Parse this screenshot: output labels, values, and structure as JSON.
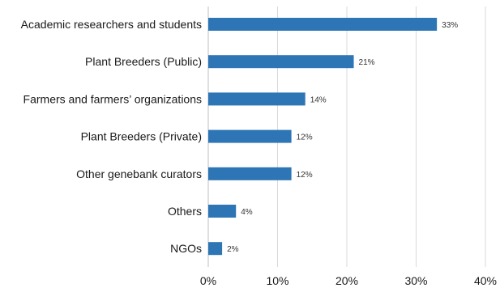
{
  "chart_data": {
    "type": "bar",
    "orientation": "horizontal",
    "categories": [
      "Academic researchers and students",
      "Plant Breeders (Public)",
      "Farmers and farmers’ organizations",
      "Plant Breeders (Private)",
      "Other genebank curators",
      "Others",
      "NGOs"
    ],
    "values": [
      33,
      21,
      14,
      12,
      12,
      4,
      2
    ],
    "data_labels": [
      "33%",
      "21%",
      "14%",
      "12%",
      "12%",
      "4%",
      "2%"
    ],
    "x_ticks": [
      "0%",
      "10%",
      "20%",
      "30%",
      "40%"
    ],
    "xlim": [
      0,
      40
    ],
    "grid": true,
    "bar_color": "#2e75b6",
    "title": "",
    "xlabel": "",
    "ylabel": ""
  }
}
